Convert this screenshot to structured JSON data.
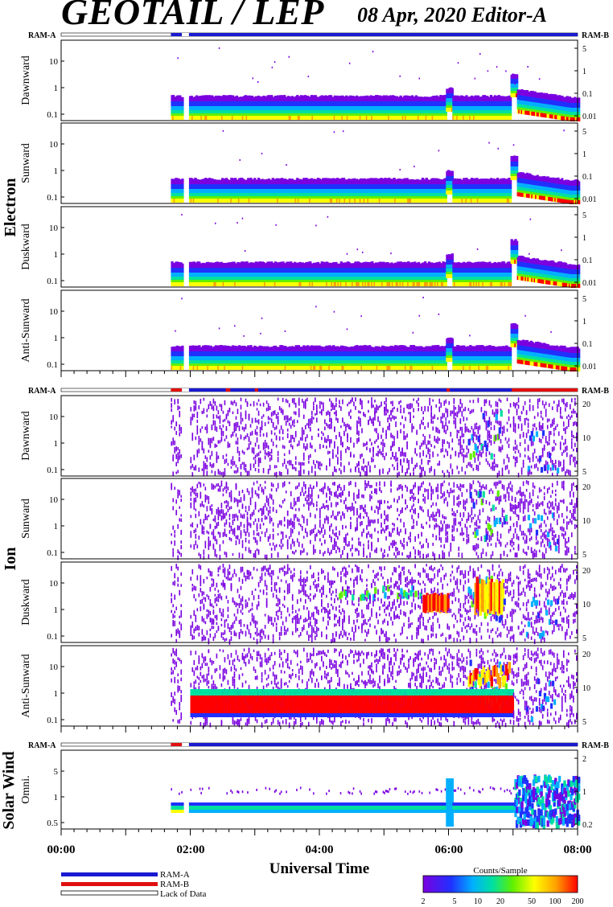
{
  "header": {
    "title": "GEOTAIL / LEP",
    "date_editor": "08 Apr, 2020   Editor-A"
  },
  "sections": {
    "electron": "Electron",
    "ion": "Ion",
    "solar_wind": "Solar Wind"
  },
  "ram_labels": {
    "left": "RAM-A",
    "right": "RAM-B"
  },
  "panels": [
    {
      "group": "electron",
      "label": "Dawnward",
      "left_ticks": [
        "10",
        "1",
        "0.1"
      ],
      "right_ticks": [
        "5",
        "1",
        "0.1",
        "0.01"
      ]
    },
    {
      "group": "electron",
      "label": "Sunward",
      "left_ticks": [
        "10",
        "1",
        "0.1"
      ],
      "right_ticks": [
        "5",
        "1",
        "0.1",
        "0.01"
      ]
    },
    {
      "group": "electron",
      "label": "Duskward",
      "left_ticks": [
        "10",
        "1",
        "0.1"
      ],
      "right_ticks": [
        "5",
        "1",
        "0.1",
        "0.01"
      ]
    },
    {
      "group": "electron",
      "label": "Anti-Sunward",
      "left_ticks": [
        "10",
        "1",
        "0.1"
      ],
      "right_ticks": [
        "5",
        "1",
        "0.1",
        "0.01"
      ]
    },
    {
      "group": "ion",
      "label": "Dawnward",
      "left_ticks": [
        "10",
        "1",
        "0.1"
      ],
      "right_ticks": [
        "20",
        "10",
        "5"
      ]
    },
    {
      "group": "ion",
      "label": "Sunward",
      "left_ticks": [
        "10",
        "1",
        "0.1"
      ],
      "right_ticks": [
        "20",
        "10",
        "5"
      ]
    },
    {
      "group": "ion",
      "label": "Duskward",
      "left_ticks": [
        "10",
        "1",
        "0.1"
      ],
      "right_ticks": [
        "20",
        "10",
        "5"
      ]
    },
    {
      "group": "ion",
      "label": "Anti-Sunward",
      "left_ticks": [
        "10",
        "1",
        "0.1"
      ],
      "right_ticks": [
        "20",
        "10",
        "5"
      ]
    },
    {
      "group": "solar_wind",
      "label": "Omni.",
      "left_ticks": [
        "5",
        "1",
        "0.5"
      ],
      "right_ticks": [
        "2",
        "1",
        "0.2"
      ]
    }
  ],
  "legend": {
    "ram_a": "RAM-A",
    "ram_b": "RAM-B",
    "lack": "Lack of Data",
    "colorbar_title": "Counts/Sample",
    "colorbar_ticks": [
      "2",
      "5",
      "10",
      "20",
      "50",
      "100",
      "200"
    ]
  },
  "colors": {
    "ram_a": "#1a1ad0",
    "ram_b": "#e01010",
    "palette": [
      "#7a00e0",
      "#2030ff",
      "#00b0ff",
      "#00e0a0",
      "#60f000",
      "#ffff00",
      "#ffa000",
      "#ff0000"
    ]
  },
  "chart_data": {
    "type": "heatmap",
    "xlabel": "Universal Time",
    "x_ticks": [
      "00:00",
      "02:00",
      "04:00",
      "06:00",
      "08:00"
    ],
    "xlim": [
      "00:00",
      "08:00"
    ],
    "data_start": "01:42",
    "data_gap": [
      "01:52",
      "01:58"
    ],
    "ram_b_intervals": [
      "01:42-01:52",
      "03:02-03:04",
      "05:58-06:00",
      "07:00-08:00"
    ],
    "electron_features": [
      "enhancement near 06:00",
      "step to higher flux at 07:00"
    ],
    "ion_features": [
      "patches 06:20-06:50",
      "Anti-Sunward strong band 02:00-07:00"
    ],
    "solar_wind_features": [
      "spike near 06:00",
      "broad enhancement after 07:00"
    ]
  }
}
